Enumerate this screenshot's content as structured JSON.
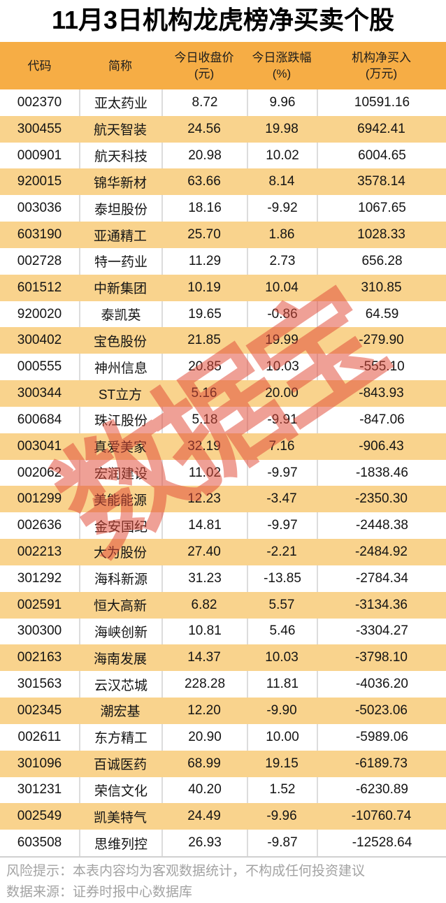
{
  "title": "11月3日机构龙虎榜净买卖个股",
  "watermark": "数据宝",
  "colors": {
    "header_bg": "#F6AD45",
    "stripe_bg": "#F9D38D",
    "watermark": "#E24A38",
    "footer_text": "#A3A3A3"
  },
  "table": {
    "header": [
      {
        "line1": "代码",
        "line2": ""
      },
      {
        "line1": "简称",
        "line2": ""
      },
      {
        "line1": "今日收盘价",
        "line2": "(元)"
      },
      {
        "line1": "今日涨跌幅",
        "line2": "(%)"
      },
      {
        "line1": "机构净买入",
        "line2": "(万元)"
      }
    ]
  },
  "footer": {
    "risk": "风险提示：本表内容均为客观数据统计，不构成任何投资建议",
    "source": "数据来源：证券时报中心数据库"
  },
  "chart_data": {
    "type": "table",
    "title": "11月3日机构龙虎榜净买卖个股",
    "columns": [
      "代码",
      "简称",
      "今日收盘价(元)",
      "今日涨跌幅(%)",
      "机构净买入(万元)"
    ],
    "rows": [
      [
        "002370",
        "亚太药业",
        "8.72",
        "9.96",
        "10591.16"
      ],
      [
        "300455",
        "航天智装",
        "24.56",
        "19.98",
        "6942.41"
      ],
      [
        "000901",
        "航天科技",
        "20.98",
        "10.02",
        "6004.65"
      ],
      [
        "920015",
        "锦华新材",
        "63.66",
        "8.14",
        "3578.14"
      ],
      [
        "003036",
        "泰坦股份",
        "18.16",
        "-9.92",
        "1067.65"
      ],
      [
        "603190",
        "亚通精工",
        "25.70",
        "1.86",
        "1028.33"
      ],
      [
        "002728",
        "特一药业",
        "11.29",
        "2.73",
        "656.28"
      ],
      [
        "601512",
        "中新集团",
        "10.19",
        "10.04",
        "310.85"
      ],
      [
        "920020",
        "泰凯英",
        "19.65",
        "-0.86",
        "64.59"
      ],
      [
        "300402",
        "宝色股份",
        "21.85",
        "19.99",
        "-279.90"
      ],
      [
        "000555",
        "神州信息",
        "20.85",
        "10.03",
        "-555.10"
      ],
      [
        "300344",
        "ST立方",
        "5.16",
        "20.00",
        "-843.93"
      ],
      [
        "600684",
        "珠江股份",
        "5.18",
        "-9.91",
        "-847.06"
      ],
      [
        "003041",
        "真爱美家",
        "32.19",
        "7.16",
        "-906.43"
      ],
      [
        "002062",
        "宏润建设",
        "11.02",
        "-9.97",
        "-1838.46"
      ],
      [
        "001299",
        "美能能源",
        "12.23",
        "-3.47",
        "-2350.30"
      ],
      [
        "002636",
        "金安国纪",
        "14.81",
        "-9.97",
        "-2448.38"
      ],
      [
        "002213",
        "大为股份",
        "27.40",
        "-2.21",
        "-2484.92"
      ],
      [
        "301292",
        "海科新源",
        "31.23",
        "-13.85",
        "-2784.34"
      ],
      [
        "002591",
        "恒大高新",
        "6.82",
        "5.57",
        "-3134.36"
      ],
      [
        "300300",
        "海峡创新",
        "10.81",
        "5.46",
        "-3304.27"
      ],
      [
        "002163",
        "海南发展",
        "14.37",
        "10.03",
        "-3798.10"
      ],
      [
        "301563",
        "云汉芯城",
        "228.28",
        "11.81",
        "-4036.20"
      ],
      [
        "002345",
        "潮宏基",
        "12.20",
        "-9.90",
        "-5023.06"
      ],
      [
        "002611",
        "东方精工",
        "20.90",
        "10.00",
        "-5989.06"
      ],
      [
        "301096",
        "百诚医药",
        "68.99",
        "19.15",
        "-6189.73"
      ],
      [
        "301231",
        "荣信文化",
        "40.20",
        "1.52",
        "-6230.89"
      ],
      [
        "002549",
        "凯美特气",
        "24.49",
        "-9.96",
        "-10760.74"
      ],
      [
        "603508",
        "思维列控",
        "26.93",
        "-9.87",
        "-12528.64"
      ]
    ]
  }
}
